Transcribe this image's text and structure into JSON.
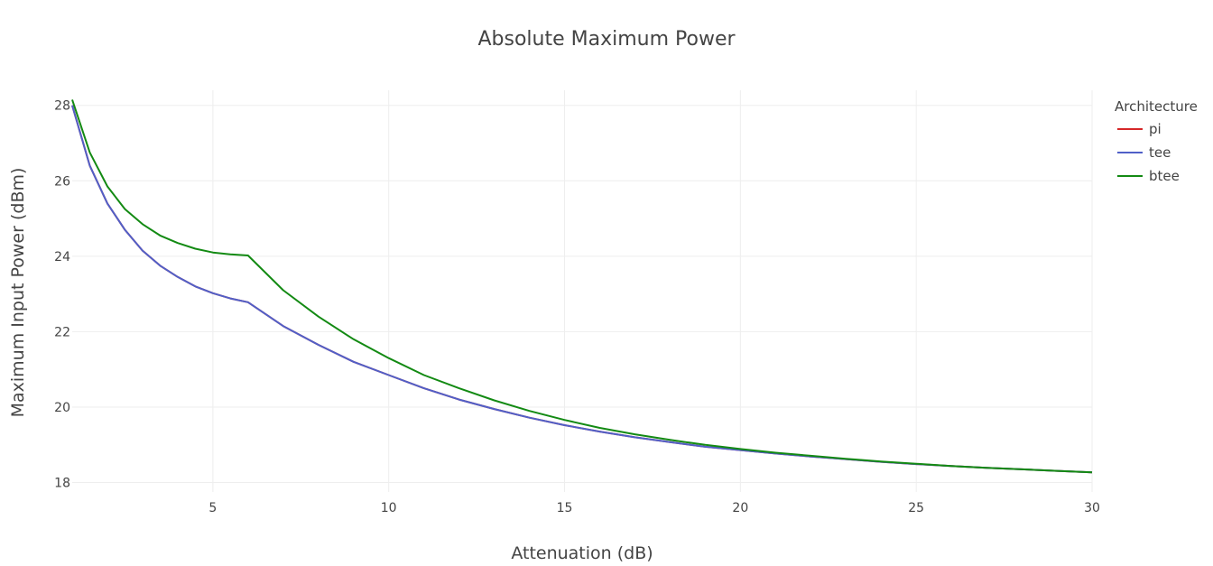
{
  "chart_data": {
    "type": "line",
    "title": "Absolute Maximum Power",
    "xlabel": "Attenuation (dB)",
    "ylabel": "Maximum Input Power (dBm)",
    "xlim": [
      1,
      30
    ],
    "ylim": [
      17.75,
      28.4
    ],
    "xticks": [
      5,
      10,
      15,
      20,
      25,
      30
    ],
    "yticks": [
      18,
      20,
      22,
      24,
      26,
      28
    ],
    "grid": true,
    "legend": {
      "title": "Architecture",
      "position": "right"
    },
    "x": [
      1,
      1.5,
      2,
      2.5,
      3,
      3.5,
      4,
      4.5,
      5,
      5.5,
      6,
      7,
      8,
      9,
      10,
      11,
      12,
      13,
      14,
      15,
      16,
      17,
      18,
      19,
      20,
      21,
      22,
      23,
      24,
      25,
      26,
      27,
      28,
      29,
      30
    ],
    "series": [
      {
        "name": "pi",
        "color": "#d62728",
        "values": [
          28.0,
          26.4,
          25.4,
          24.7,
          24.15,
          23.75,
          23.45,
          23.2,
          23.02,
          22.88,
          22.78,
          22.15,
          21.65,
          21.2,
          20.85,
          20.5,
          20.2,
          19.95,
          19.72,
          19.52,
          19.35,
          19.2,
          19.07,
          18.95,
          18.86,
          18.77,
          18.69,
          18.62,
          18.55,
          18.49,
          18.44,
          18.39,
          18.35,
          18.31,
          18.27
        ]
      },
      {
        "name": "tee",
        "color": "#5060c8",
        "values": [
          28.0,
          26.4,
          25.4,
          24.7,
          24.15,
          23.75,
          23.45,
          23.2,
          23.02,
          22.88,
          22.78,
          22.15,
          21.65,
          21.2,
          20.85,
          20.5,
          20.2,
          19.95,
          19.72,
          19.52,
          19.35,
          19.2,
          19.07,
          18.95,
          18.86,
          18.77,
          18.69,
          18.62,
          18.55,
          18.49,
          18.44,
          18.39,
          18.35,
          18.31,
          18.27
        ]
      },
      {
        "name": "btee",
        "color": "#138a13",
        "values": [
          28.15,
          26.75,
          25.85,
          25.25,
          24.85,
          24.55,
          24.35,
          24.2,
          24.1,
          24.05,
          24.02,
          23.1,
          22.4,
          21.8,
          21.3,
          20.85,
          20.5,
          20.18,
          19.9,
          19.66,
          19.45,
          19.28,
          19.13,
          19.0,
          18.89,
          18.79,
          18.71,
          18.63,
          18.56,
          18.5,
          18.44,
          18.39,
          18.35,
          18.31,
          18.27
        ]
      }
    ]
  }
}
